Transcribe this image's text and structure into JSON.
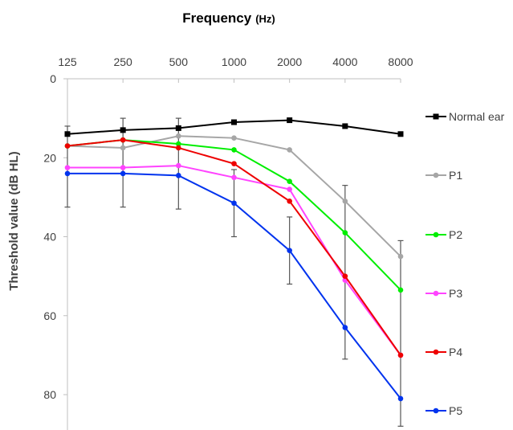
{
  "chart_data": {
    "type": "line",
    "title": "Frequency",
    "title_unit": "(Hz)",
    "xlabel": "",
    "ylabel": "Threshold value (dB HL)",
    "x_position": "top",
    "y_inverted": true,
    "ylim": [
      0,
      88
    ],
    "categories": [
      "125",
      "250",
      "500",
      "1000",
      "2000",
      "4000",
      "8000"
    ],
    "yticks": [
      0,
      20,
      40,
      60,
      80
    ],
    "grid": false,
    "legend_position": "right",
    "series": [
      {
        "name": "Normal ear",
        "color": "#000000",
        "marker": "square",
        "values": [
          14,
          13,
          12.5,
          11,
          10.5,
          12,
          14
        ]
      },
      {
        "name": "P1",
        "color": "#a6a6a6",
        "marker": "circle",
        "values": [
          17,
          17.5,
          14.5,
          15,
          18,
          31,
          45
        ]
      },
      {
        "name": "P2",
        "color": "#00ee00",
        "marker": "circle",
        "values": [
          17,
          15.5,
          16.5,
          18,
          26,
          39,
          53.5
        ]
      },
      {
        "name": "P3",
        "color": "#ff44ff",
        "marker": "circle",
        "values": [
          22.5,
          22.5,
          22,
          25,
          28,
          51,
          70
        ]
      },
      {
        "name": "P4",
        "color": "#ee0000",
        "marker": "circle",
        "values": [
          17,
          15.5,
          17.5,
          21.5,
          31,
          50,
          70
        ]
      },
      {
        "name": "P5",
        "color": "#0033ee",
        "marker": "circle",
        "values": [
          24,
          24,
          24.5,
          31.5,
          43.5,
          63,
          81
        ]
      }
    ],
    "error_bars": [
      {
        "category": "125",
        "center": 22,
        "low": 12,
        "high": 32.5
      },
      {
        "category": "250",
        "center": 20,
        "low": 10,
        "high": 32.5
      },
      {
        "category": "500",
        "center": 20,
        "low": 10,
        "high": 33
      },
      {
        "category": "1000",
        "center": 31.5,
        "low": 23,
        "high": 40
      },
      {
        "category": "2000",
        "center": 43.5,
        "low": 35,
        "high": 52
      },
      {
        "category": "4000",
        "center": 51,
        "low": 27,
        "high": 71
      },
      {
        "category": "8000",
        "center": 62,
        "low": 41,
        "high": 88
      }
    ]
  }
}
